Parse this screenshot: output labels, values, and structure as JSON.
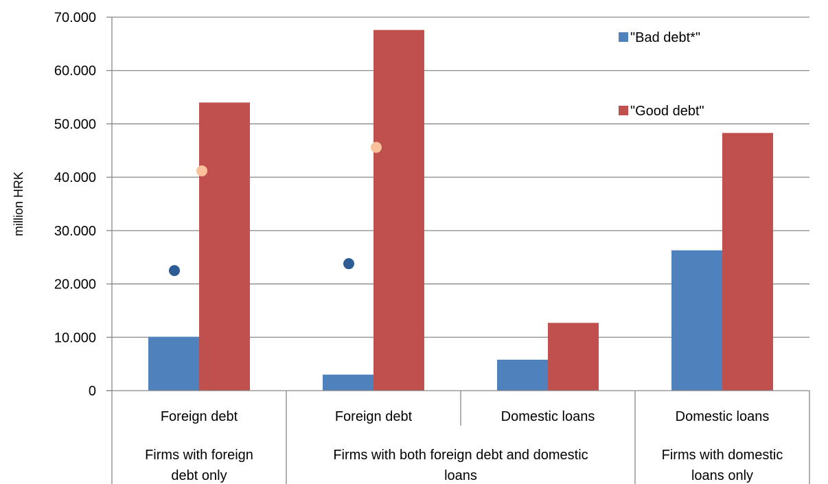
{
  "chart_data": {
    "type": "bar",
    "ylabel": "million HRK",
    "ylim": [
      0,
      70000
    ],
    "yticks": [
      0,
      10000,
      20000,
      30000,
      40000,
      50000,
      60000,
      70000
    ],
    "ytick_labels": [
      "0",
      "10.000",
      "20.000",
      "30.000",
      "40.000",
      "50.000",
      "60.000",
      "70.000"
    ],
    "grid": true,
    "legend_position": "top-right",
    "categories": [
      "Foreign debt",
      "Foreign debt",
      "Domestic loans",
      "Domestic loans"
    ],
    "groups": [
      {
        "label_lines": [
          "Firms with foreign",
          "debt only"
        ]
      },
      {
        "label_lines": [
          "Firms with both foreign debt and domestic",
          "loans"
        ]
      },
      {
        "label_lines": [
          "Firms with domestic",
          "loans only"
        ]
      }
    ],
    "series": [
      {
        "name": "\"Bad debt*\"",
        "color": "#4f81bd",
        "values": [
          10100,
          3000,
          5800,
          26300
        ]
      },
      {
        "name": "\"Good debt\"",
        "color": "#c0504d",
        "values": [
          54000,
          67600,
          12700,
          48300
        ]
      }
    ],
    "markers": [
      {
        "color": "#2e5c94",
        "x_index": 0,
        "value": 22500
      },
      {
        "color": "#fbc19a",
        "x_index": 0,
        "value": 41200
      },
      {
        "color": "#2e5c94",
        "x_index": 1,
        "value": 23800
      },
      {
        "color": "#fbc19a",
        "x_index": 1,
        "value": 45600
      }
    ]
  }
}
